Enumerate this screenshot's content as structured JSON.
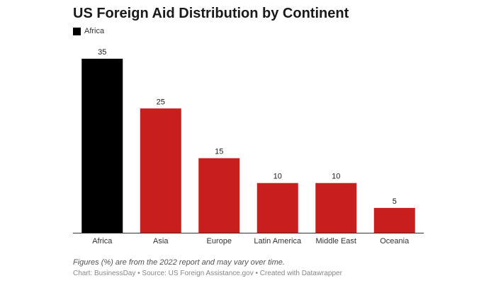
{
  "chart_data": {
    "type": "bar",
    "title": "US Foreign Aid Distribution by Continent",
    "categories": [
      "Africa",
      "Asia",
      "Europe",
      "Latin America",
      "Middle East",
      "Oceania"
    ],
    "values": [
      35,
      25,
      15,
      10,
      10,
      5
    ],
    "highlight_category": "Africa",
    "legend": [
      {
        "label": "Africa",
        "color": "#000000"
      }
    ],
    "colors": {
      "highlight": "#000000",
      "default": "#c81e1e",
      "axis": "#333333"
    },
    "ylim": [
      0,
      35
    ],
    "xlabel": "",
    "ylabel": "",
    "grid": false
  },
  "footer": {
    "note": "Figures (%) are from the 2022 report and may vary over time.",
    "credits": "Chart: BusinessDay • Source: US Foreign Assistance.gov • Created with Datawrapper"
  }
}
